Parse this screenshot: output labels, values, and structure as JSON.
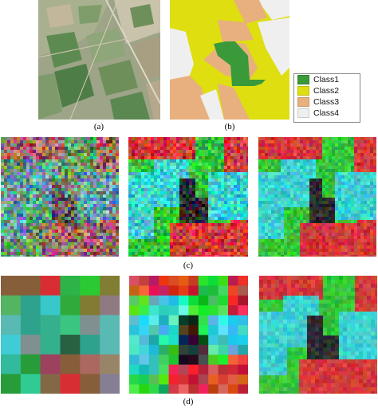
{
  "captions": {
    "a": "(a)",
    "b": "(b)",
    "c": "(c)",
    "d": "(d)"
  },
  "legend": [
    {
      "label": "Class1",
      "color": "#3a9a3a"
    },
    {
      "label": "Class2",
      "color": "#dede10"
    },
    {
      "label": "Class3",
      "color": "#e8b07e"
    },
    {
      "label": "Class4",
      "color": "#efefef"
    }
  ],
  "colors": {
    "class1": "#3a9a3a",
    "class2": "#dede10",
    "class3": "#e8b07e",
    "class4": "#efefef",
    "sar_red": "#d23a3a",
    "sar_green": "#35c53a",
    "sar_cyan": "#3ecfd0",
    "sar_dark": "#2d2d2d",
    "aerial_green": "#6f8f5a",
    "aerial_tan": "#b6a88c"
  }
}
